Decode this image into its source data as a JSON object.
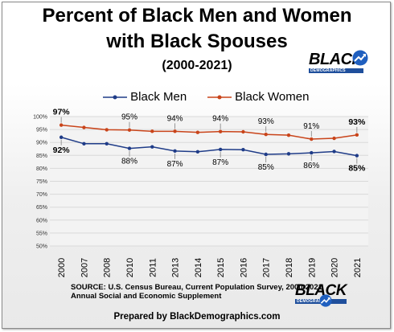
{
  "chart_data": {
    "type": "line",
    "title_line1": "Percent of Black Men and Women",
    "title_line2": "with Black Spouses",
    "subtitle": "(2000-2021)",
    "categories": [
      "2000",
      "2007",
      "2008",
      "2010",
      "2011",
      "2013",
      "2014",
      "2015",
      "2016",
      "2017",
      "2018",
      "2019",
      "2020",
      "2021"
    ],
    "series": [
      {
        "name": "Black Men",
        "color": "#1f3c88",
        "values": [
          92,
          89.5,
          89.5,
          87.7,
          88.3,
          86.7,
          86.4,
          87.3,
          87.2,
          85.4,
          85.6,
          86.0,
          86.5,
          84.9
        ]
      },
      {
        "name": "Black Women",
        "color": "#c9441a",
        "values": [
          96.7,
          95.8,
          94.9,
          94.8,
          94.3,
          94.3,
          93.9,
          94.2,
          94.1,
          93.1,
          92.8,
          91.3,
          91.6,
          92.9
        ]
      }
    ],
    "data_labels": {
      "Black Men": {
        "2000": "92%",
        "2010": "88%",
        "2013": "87%",
        "2015": "87%",
        "2017": "85%",
        "2019": "86%",
        "2021": "85%"
      },
      "Black Women": {
        "2000": "97%",
        "2010": "95%",
        "2013": "94%",
        "2015": "94%",
        "2017": "93%",
        "2019": "91%",
        "2021": "93%"
      }
    },
    "ylim": [
      50,
      100
    ],
    "yticks": [
      "50%",
      "55%",
      "60%",
      "65%",
      "70%",
      "75%",
      "80%",
      "85%",
      "90%",
      "95%",
      "100%"
    ],
    "grid": true,
    "legend_position": "top"
  },
  "source_line1": "SOURCE: U.S. Census Bureau, Current Population Survey, 2000-2021",
  "source_line2": "Annual Social and Economic Supplement",
  "prepared_by": "Prepared by BlackDemographics.com",
  "logo": {
    "word": "BLACK",
    "tagline": "DEMOGRAPHICS"
  }
}
